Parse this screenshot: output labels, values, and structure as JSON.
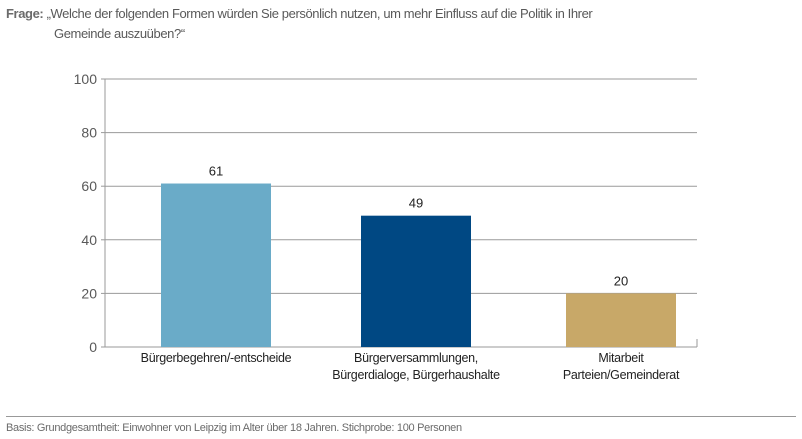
{
  "question": {
    "label": "Frage:",
    "line1": "„Welche der folgenden Formen würden Sie persönlich nutzen, um mehr Einfluss auf die Politik in Ihrer",
    "line2": "Gemeinde auszuüben?“"
  },
  "footer": "Basis: Grundgesamtheit: Einwohner von Leipzig im Alter über 18 Jahren. Stichprobe: 100 Personen",
  "chart_data": {
    "type": "bar",
    "categories": [
      [
        "Bürgerbegehren/-entscheide"
      ],
      [
        "Bürgerversammlungen,",
        "Bürgerdialoge, Bürgerhaushalte"
      ],
      [
        "Mitarbeit",
        "Parteien/Gemeinderat"
      ]
    ],
    "values": [
      61,
      49,
      20
    ],
    "colors": [
      "#6aabc8",
      "#004883",
      "#c8a868"
    ],
    "ylim": [
      0,
      100
    ],
    "yticks": [
      0,
      20,
      40,
      60,
      80,
      100
    ],
    "grid": true,
    "title": "",
    "xlabel": "",
    "ylabel": ""
  }
}
